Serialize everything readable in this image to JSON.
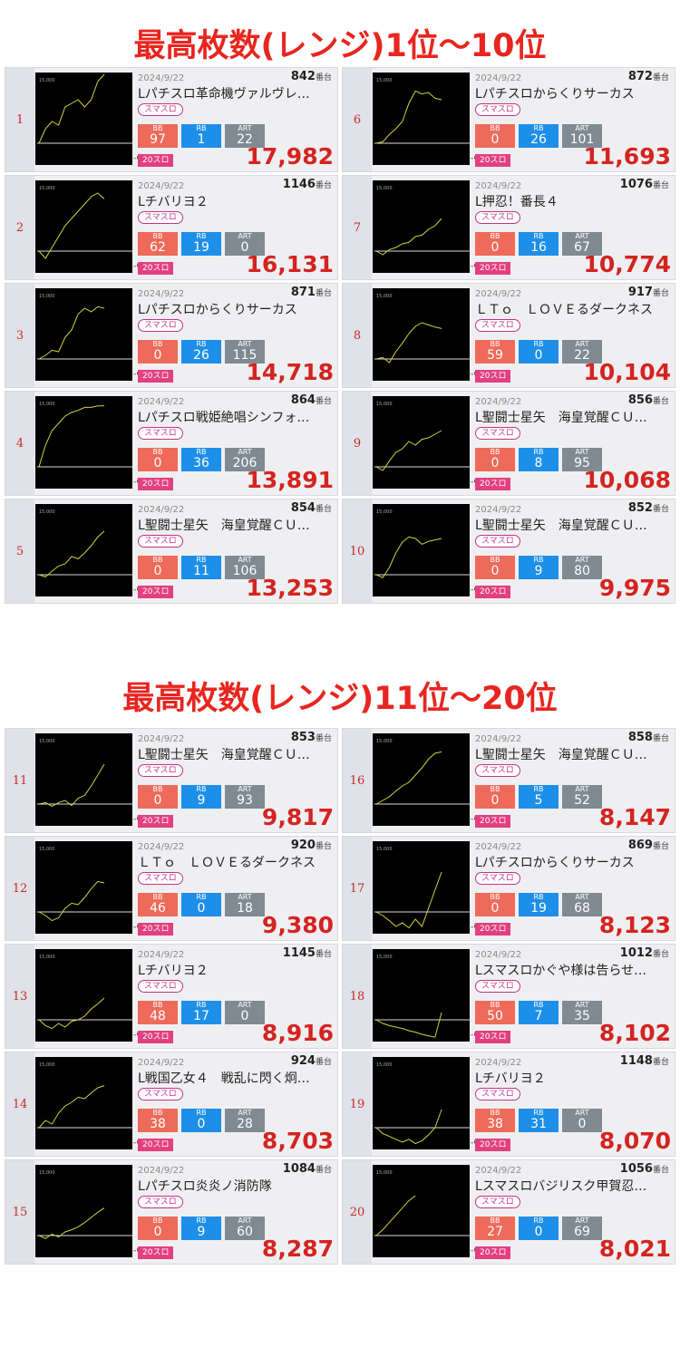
{
  "titles": {
    "top": "最高枚数(レンジ)1位〜10位",
    "bottom": "最高枚数(レンジ)11位〜20位"
  },
  "graph_labels": {
    "max": "15,000",
    "axis": "-G"
  },
  "machine_suffix": "番台",
  "tag_label": "スマスロ",
  "stat_labels": {
    "bb": "BB",
    "rb": "RB",
    "art": "ART"
  },
  "colors": {
    "title": "#e8251f",
    "bb": "#ee6a5a",
    "rb": "#1e8fe8",
    "art": "#7f8a92",
    "score": "#d42420",
    "type": "#e2407e",
    "graph_line": "#d6d23a"
  },
  "cards": [
    {
      "rank": "1",
      "date": "2024/9/22",
      "machine": "842",
      "name": "Lパチスロ革命機ヴァルヴレ…",
      "bb": "97",
      "rb": "1",
      "art": "22",
      "type": "20スロ",
      "score": "17,982",
      "trend": [
        0,
        0.2,
        0.3,
        0.25,
        0.5,
        0.55,
        0.6,
        0.5,
        0.6,
        0.85,
        0.95
      ]
    },
    {
      "rank": "6",
      "date": "2024/9/22",
      "machine": "872",
      "name": "Lパチスロからくりサーカス",
      "bb": "0",
      "rb": "26",
      "art": "101",
      "type": "20スロ",
      "score": "11,693",
      "trend": [
        0,
        0.02,
        0.12,
        0.2,
        0.3,
        0.55,
        0.72,
        0.68,
        0.7,
        0.62,
        0.6
      ]
    },
    {
      "rank": "2",
      "date": "2024/9/22",
      "machine": "1146",
      "name": "Lチバリヨ２",
      "bb": "62",
      "rb": "19",
      "art": "0",
      "type": "20スロ",
      "score": "16,131",
      "trend": [
        0,
        -0.1,
        0.05,
        0.2,
        0.35,
        0.45,
        0.55,
        0.65,
        0.75,
        0.8,
        0.72
      ]
    },
    {
      "rank": "7",
      "date": "2024/9/22",
      "machine": "1076",
      "name": "L押忍！番長４",
      "bb": "0",
      "rb": "16",
      "art": "67",
      "type": "20スロ",
      "score": "10,774",
      "trend": [
        0,
        -0.05,
        0.02,
        0.05,
        0.1,
        0.12,
        0.2,
        0.22,
        0.3,
        0.35,
        0.45
      ]
    },
    {
      "rank": "3",
      "date": "2024/9/22",
      "machine": "871",
      "name": "Lパチスロからくりサーカス",
      "bb": "0",
      "rb": "26",
      "art": "115",
      "type": "20スロ",
      "score": "14,718",
      "trend": [
        0,
        0.05,
        0.12,
        0.1,
        0.3,
        0.4,
        0.62,
        0.7,
        0.65,
        0.72,
        0.7
      ]
    },
    {
      "rank": "8",
      "date": "2024/9/22",
      "machine": "917",
      "name": "ＬＴｏ　ＬＯＶＥるダークネス",
      "bb": "59",
      "rb": "0",
      "art": "22",
      "type": "20スロ",
      "score": "10,104",
      "trend": [
        0,
        0.02,
        -0.05,
        0.1,
        0.22,
        0.35,
        0.45,
        0.5,
        0.47,
        0.44,
        0.42
      ]
    },
    {
      "rank": "4",
      "date": "2024/9/22",
      "machine": "864",
      "name": "Lパチスロ戦姫絶唱シンフォ…",
      "bb": "0",
      "rb": "36",
      "art": "206",
      "type": "20スロ",
      "score": "13,891",
      "trend": [
        0,
        0.3,
        0.5,
        0.6,
        0.7,
        0.75,
        0.78,
        0.82,
        0.82,
        0.84,
        0.84
      ]
    },
    {
      "rank": "9",
      "date": "2024/9/22",
      "machine": "856",
      "name": "L聖闘士星矢　海皇覚醒ＣＵ…",
      "bb": "0",
      "rb": "8",
      "art": "95",
      "type": "20スロ",
      "score": "10,068",
      "trend": [
        0,
        -0.05,
        0.08,
        0.2,
        0.25,
        0.35,
        0.3,
        0.38,
        0.4,
        0.45,
        0.5
      ]
    },
    {
      "rank": "5",
      "date": "2024/9/22",
      "machine": "854",
      "name": "L聖闘士星矢　海皇覚醒ＣＵ…",
      "bb": "0",
      "rb": "11",
      "art": "106",
      "type": "20スロ",
      "score": "13,253",
      "trend": [
        0,
        -0.03,
        0.05,
        0.12,
        0.15,
        0.25,
        0.22,
        0.3,
        0.4,
        0.52,
        0.6
      ]
    },
    {
      "rank": "10",
      "date": "2024/9/22",
      "machine": "852",
      "name": "L聖闘士星矢　海皇覚醒ＣＵ…",
      "bb": "0",
      "rb": "9",
      "art": "80",
      "type": "20スロ",
      "score": "9,975",
      "trend": [
        0,
        -0.04,
        0.1,
        0.3,
        0.45,
        0.52,
        0.5,
        0.42,
        0.46,
        0.48,
        0.5
      ]
    },
    {
      "rank": "11",
      "date": "2024/9/22",
      "machine": "853",
      "name": "L聖闘士星矢　海皇覚醒ＣＵ…",
      "bb": "0",
      "rb": "9",
      "art": "93",
      "type": "20スロ",
      "score": "9,817",
      "trend": [
        0,
        0.02,
        -0.03,
        0.02,
        0.05,
        -0.02,
        0.08,
        0.12,
        0.25,
        0.4,
        0.55
      ]
    },
    {
      "rank": "16",
      "date": "2024/9/22",
      "machine": "858",
      "name": "L聖闘士星矢　海皇覚醒ＣＵ…",
      "bb": "0",
      "rb": "5",
      "art": "52",
      "type": "20スロ",
      "score": "8,147",
      "trend": [
        0,
        0.05,
        0.1,
        0.18,
        0.25,
        0.3,
        0.4,
        0.5,
        0.62,
        0.7,
        0.72
      ]
    },
    {
      "rank": "12",
      "date": "2024/9/22",
      "machine": "920",
      "name": "ＬＴｏ　ＬＯＶＥるダークネス",
      "bb": "46",
      "rb": "0",
      "art": "18",
      "type": "20スロ",
      "score": "9,380",
      "trend": [
        0,
        -0.05,
        -0.12,
        -0.08,
        0.05,
        0.12,
        0.1,
        0.2,
        0.32,
        0.42,
        0.4
      ]
    },
    {
      "rank": "17",
      "date": "2024/9/22",
      "machine": "869",
      "name": "Lパチスロからくりサーカス",
      "bb": "0",
      "rb": "19",
      "art": "68",
      "type": "20スロ",
      "score": "8,123",
      "trend": [
        0,
        -0.05,
        -0.12,
        -0.2,
        -0.15,
        -0.22,
        -0.1,
        -0.2,
        0.05,
        0.3,
        0.55
      ]
    },
    {
      "rank": "13",
      "date": "2024/9/22",
      "machine": "1145",
      "name": "Lチバリヨ２",
      "bb": "48",
      "rb": "17",
      "art": "0",
      "type": "20スロ",
      "score": "8,916",
      "trend": [
        0,
        -0.08,
        -0.12,
        -0.05,
        -0.1,
        -0.02,
        0,
        0.05,
        0.15,
        0.22,
        0.3
      ]
    },
    {
      "rank": "18",
      "date": "2024/9/22",
      "machine": "1012",
      "name": "Lスマスロかぐや様は告らせ…",
      "bb": "50",
      "rb": "7",
      "art": "35",
      "type": "20スロ",
      "score": "8,102",
      "trend": [
        0,
        -0.05,
        -0.08,
        -0.1,
        -0.12,
        -0.15,
        -0.17,
        -0.2,
        -0.22,
        -0.24,
        0.1
      ]
    },
    {
      "rank": "14",
      "date": "2024/9/22",
      "machine": "924",
      "name": "L戦国乙女４　戦乱に閃く炯…",
      "bb": "38",
      "rb": "0",
      "art": "28",
      "type": "20スロ",
      "score": "8,703",
      "trend": [
        0,
        0.1,
        0.05,
        0.2,
        0.3,
        0.35,
        0.42,
        0.4,
        0.48,
        0.55,
        0.58
      ]
    },
    {
      "rank": "19",
      "date": "2024/9/22",
      "machine": "1148",
      "name": "Lチバリヨ２",
      "bb": "38",
      "rb": "31",
      "art": "0",
      "type": "20スロ",
      "score": "8,070",
      "trend": [
        0,
        -0.08,
        -0.12,
        -0.16,
        -0.2,
        -0.16,
        -0.22,
        -0.18,
        -0.1,
        0,
        0.25
      ]
    },
    {
      "rank": "15",
      "date": "2024/9/22",
      "machine": "1084",
      "name": "Lパチスロ炎炎ノ消防隊",
      "bb": "0",
      "rb": "9",
      "art": "60",
      "type": "20スロ",
      "score": "8,287",
      "trend": [
        0,
        -0.04,
        0.02,
        -0.02,
        0.05,
        0.08,
        0.12,
        0.18,
        0.25,
        0.32,
        0.38
      ]
    },
    {
      "rank": "20",
      "date": "2024/9/22",
      "machine": "1056",
      "name": "Lスマスロバジリスク甲賀忍…",
      "bb": "27",
      "rb": "0",
      "art": "69",
      "type": "20スロ",
      "score": "8,021",
      "trend": [
        0,
        0.08,
        0.18,
        0.28,
        0.38,
        0.48,
        0.55
      ]
    }
  ]
}
